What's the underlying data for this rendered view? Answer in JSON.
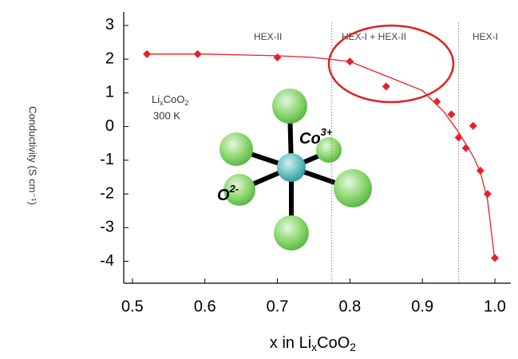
{
  "chart_data": {
    "type": "scatter",
    "x": [
      0.52,
      0.59,
      0.7,
      0.8,
      0.85,
      0.92,
      0.94,
      0.95,
      0.96,
      0.97,
      0.98,
      0.99,
      1.0
    ],
    "values": [
      2.15,
      2.15,
      2.05,
      1.93,
      1.19,
      0.74,
      0.36,
      -0.33,
      -0.64,
      0.02,
      -1.31,
      -2.0,
      -3.9
    ],
    "color": "#e8202a",
    "fit": {
      "x": [
        0.52,
        0.6,
        0.7,
        0.75,
        0.8,
        0.85,
        0.9,
        0.93,
        0.95,
        0.97,
        0.98,
        0.99,
        1.0
      ],
      "values": [
        2.15,
        2.15,
        2.1,
        2.05,
        1.93,
        1.5,
        1.07,
        0.43,
        -0.17,
        -0.88,
        -1.35,
        -2.2,
        -4.0
      ]
    },
    "xlim": [
      0.488,
      1.022
    ],
    "ylim": [
      -4.65,
      3.4
    ],
    "xticks": [
      0.5,
      0.6,
      0.7,
      0.8,
      0.9,
      {
        "value": 1,
        "label": "1.0"
      }
    ],
    "yticks": [
      -4,
      -3,
      -2,
      -1,
      0,
      1,
      2,
      3
    ],
    "xlabel": [
      "x in Li",
      "x",
      "CoO",
      "2"
    ],
    "ylabel": "Conductivity (S cm⁻¹)",
    "phase_boundaries": [
      0.775,
      0.95
    ],
    "regions": [
      "HEX-II",
      "HEX-I + HEX-II",
      "HEX-I"
    ],
    "inset": {
      "compound": [
        "Li",
        "x",
        "CoO",
        "2"
      ],
      "temperature": "300 K",
      "cation": [
        "Co",
        "3+"
      ],
      "anion": [
        "O",
        "2-"
      ]
    }
  }
}
